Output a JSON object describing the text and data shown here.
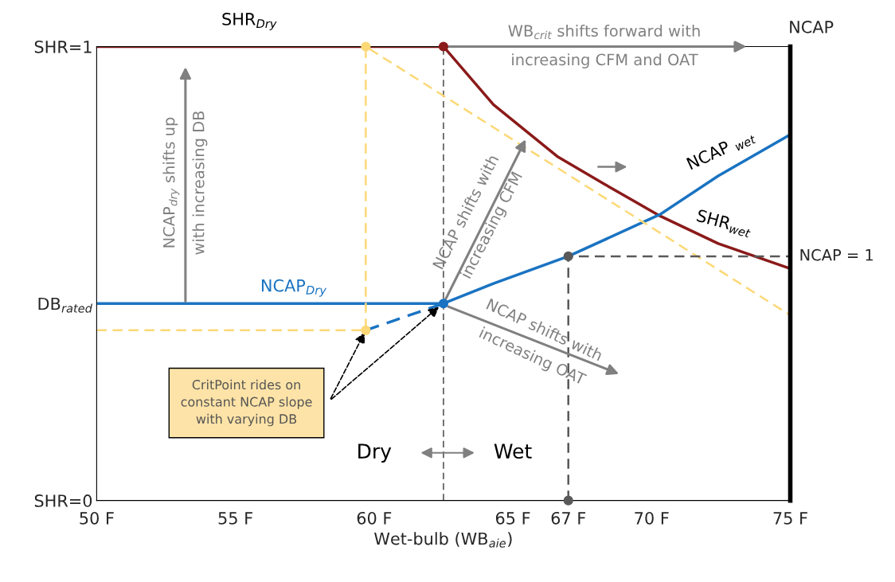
{
  "chart_data": {
    "type": "line",
    "xlabel": "Wet-bulb (WB$_{aie}$)",
    "y2label": "NCAP",
    "xlim": [
      50,
      75
    ],
    "xticks": [
      {
        "value": 50,
        "label": "50 F"
      },
      {
        "value": 55,
        "label": "55 F"
      },
      {
        "value": 60,
        "label": "60 F"
      },
      {
        "value": 65,
        "label": "65 F"
      },
      {
        "value": 67,
        "label": "67 F"
      },
      {
        "value": 70,
        "label": "70 F"
      },
      {
        "value": 75,
        "label": "75 F"
      }
    ],
    "ylim": [
      0,
      1
    ],
    "yticks": [
      {
        "value": 0,
        "label": "SHR=0"
      },
      {
        "value": 0.434,
        "label": "DB$_{rated}$"
      },
      {
        "value": 1,
        "label": "SHR=1"
      }
    ],
    "grid": false,
    "series": [
      {
        "name": "SHR$_{Dry}$",
        "color": "#8b1a1a",
        "x": [
          50,
          62.5
        ],
        "values": [
          1,
          1
        ]
      },
      {
        "name": "SHR$_{wet}$",
        "color": "#8b1a1a",
        "x": [
          62.5,
          64.3,
          66.6,
          68.3,
          70.3,
          72.4,
          75
        ],
        "values": [
          1,
          0.872,
          0.758,
          0.697,
          0.627,
          0.566,
          0.511
        ]
      },
      {
        "name": "NCAP$_{Dry}$",
        "color": "#1a73c2",
        "x": [
          50,
          62.5
        ],
        "values": [
          0.434,
          0.434
        ]
      },
      {
        "name": "NCAP $_{wet}$",
        "color": "#1a73c2",
        "x": [
          62.5,
          64.3,
          67,
          70.3,
          72.4,
          75
        ],
        "values": [
          0.434,
          0.478,
          0.538,
          0.63,
          0.715,
          0.806
        ]
      },
      {
        "color": "#1a73c2",
        "line_style": "dashed",
        "x": [
          59.7,
          62.5
        ],
        "values": [
          0.375,
          0.434
        ]
      },
      {
        "color": "#fcd876",
        "line_style": "dashed",
        "x": [
          50,
          59.7,
          59.7,
          75
        ],
        "values": [
          0.375,
          0.375,
          1,
          0.408
        ]
      },
      {
        "color": "#595959",
        "line_style": "dashed",
        "x": [
          67,
          67,
          75
        ],
        "values": [
          0,
          0.538,
          0.538
        ]
      },
      {
        "type": "scatter",
        "color": "#595959",
        "x": [
          67,
          67
        ],
        "values": [
          0,
          0.538
        ]
      },
      {
        "type": "scatter",
        "color": "#8b1a1a",
        "x": [
          62.5
        ],
        "values": [
          1
        ]
      },
      {
        "type": "scatter",
        "color": "#1a73c2",
        "x": [
          62.5
        ],
        "values": [
          0.434
        ]
      },
      {
        "type": "scatter",
        "color": "#fcd876",
        "x": [
          59.7,
          59.7
        ],
        "values": [
          1,
          0.375
        ]
      }
    ],
    "ref_lines": [
      {
        "axis": "x",
        "value": 62.5,
        "color": "#595959",
        "line_style": "dashed"
      }
    ],
    "annotations": [
      {
        "text": "NCAP = 1",
        "x": 75,
        "y": 0.538
      },
      "WB$_{crit}$ shifts forward with\nincreasing CFM and OAT",
      "NCAP$_{dry}$ shifts up\nwith increasing DB",
      "NCAP shifts with\nincreasing CFM",
      "NCAP shifts with\nincreasing OAT",
      "CritPoint rides on\nconstant NCAP slope\nwith varying DB",
      "Dry",
      "Wet"
    ]
  }
}
